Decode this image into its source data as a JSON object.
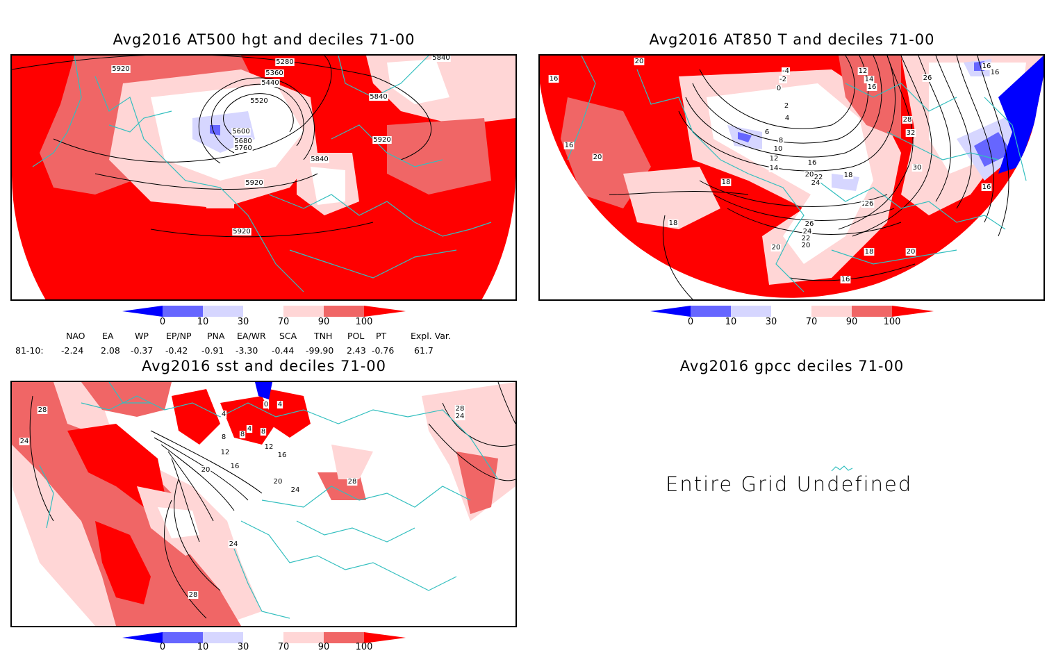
{
  "panels": {
    "hgt": {
      "title": "Avg2016 AT500 hgt and deciles 71-00",
      "contour_labels": [
        "5280",
        "5360",
        "5440",
        "5520",
        "5600",
        "5680",
        "5760",
        "5840",
        "5840",
        "5840",
        "5920",
        "5920",
        "5920",
        "5920"
      ]
    },
    "t850": {
      "title": "Avg2016 AT850 T and deciles 71-00",
      "contour_labels": [
        "20",
        "16",
        "16",
        "20",
        "-4",
        "-2",
        "0",
        "2",
        "4",
        "6",
        "8",
        "10",
        "12",
        "14",
        "16",
        "18",
        "18",
        "20",
        "22",
        "24",
        "26",
        "26",
        "24",
        "22",
        "20",
        "20",
        "12",
        "14",
        "16",
        "28",
        "32",
        "30",
        "26",
        "16",
        "18",
        "16",
        "16",
        "20",
        "18",
        "16",
        "26"
      ]
    },
    "sst": {
      "title": "Avg2016 sst and deciles 71-00",
      "contour_labels": [
        "28",
        "24",
        "0",
        "4",
        "4",
        "8",
        "8",
        "4",
        "8",
        "12",
        "12",
        "16",
        "16",
        "20",
        "20",
        "24",
        "24",
        "28",
        "28",
        "28",
        "24"
      ]
    },
    "gpcc": {
      "title": "Avg2016 gpcc deciles 71-00",
      "message": "Entire Grid Undefined"
    }
  },
  "colorbar": {
    "labels": [
      "0",
      "10",
      "30",
      "70",
      "90",
      "100"
    ],
    "colors": {
      "dark_blue": "#0000ff",
      "mid_blue": "#6666ff",
      "light_blue": "#d6d6ff",
      "white": "#ffffff",
      "light_red": "#ffd6d6",
      "mid_red": "#f06666",
      "dark_red": "#ff0000"
    }
  },
  "indices": {
    "headers": [
      "NAO",
      "EA",
      "WP",
      "EP/NP",
      "PNA",
      "EA/WR",
      "SCA",
      "TNH",
      "POL",
      "PT",
      "Expl. Var."
    ],
    "row_label": "81-10:",
    "values": [
      "-2.24",
      "2.08",
      "-0.37",
      "-0.42",
      "-0.91",
      "-3.30",
      "-0.44",
      "-99.90",
      "2.43",
      "-0.76",
      "61.7"
    ]
  },
  "map_colors": {
    "coast": "#33bfbf",
    "contour": "#000000"
  }
}
